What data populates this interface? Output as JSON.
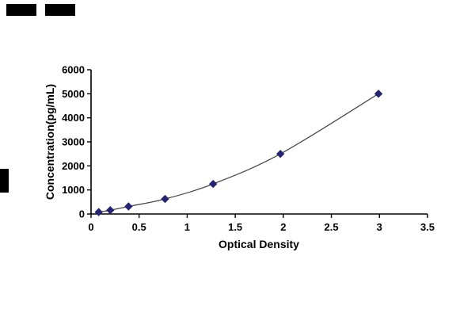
{
  "chart_data": {
    "type": "line",
    "title": "",
    "xlabel": "Optical Density",
    "ylabel": "Concentration(pg/mL)",
    "x": [
      0.08,
      0.2,
      0.39,
      0.77,
      1.27,
      1.97,
      2.99
    ],
    "y": [
      78,
      156,
      313,
      625,
      1250,
      2500,
      5000
    ],
    "xlim": [
      0,
      3.5
    ],
    "ylim": [
      0,
      6000
    ],
    "xticks": [
      0,
      0.5,
      1,
      1.5,
      2,
      2.5,
      3,
      3.5
    ],
    "xtick_labels": [
      "0",
      "0.5",
      "1",
      "1.5",
      "2",
      "2.5",
      "3",
      "3.5"
    ],
    "yticks": [
      0,
      1000,
      2000,
      3000,
      4000,
      5000,
      6000
    ],
    "ytick_labels": [
      "0",
      "1000",
      "2000",
      "3000",
      "4000",
      "5000",
      "6000"
    ],
    "grid": false,
    "legend": "none",
    "marker": "diamond",
    "marker_color": "#26246e",
    "line_color": "#4a4a4a",
    "axis_color": "#000000"
  }
}
